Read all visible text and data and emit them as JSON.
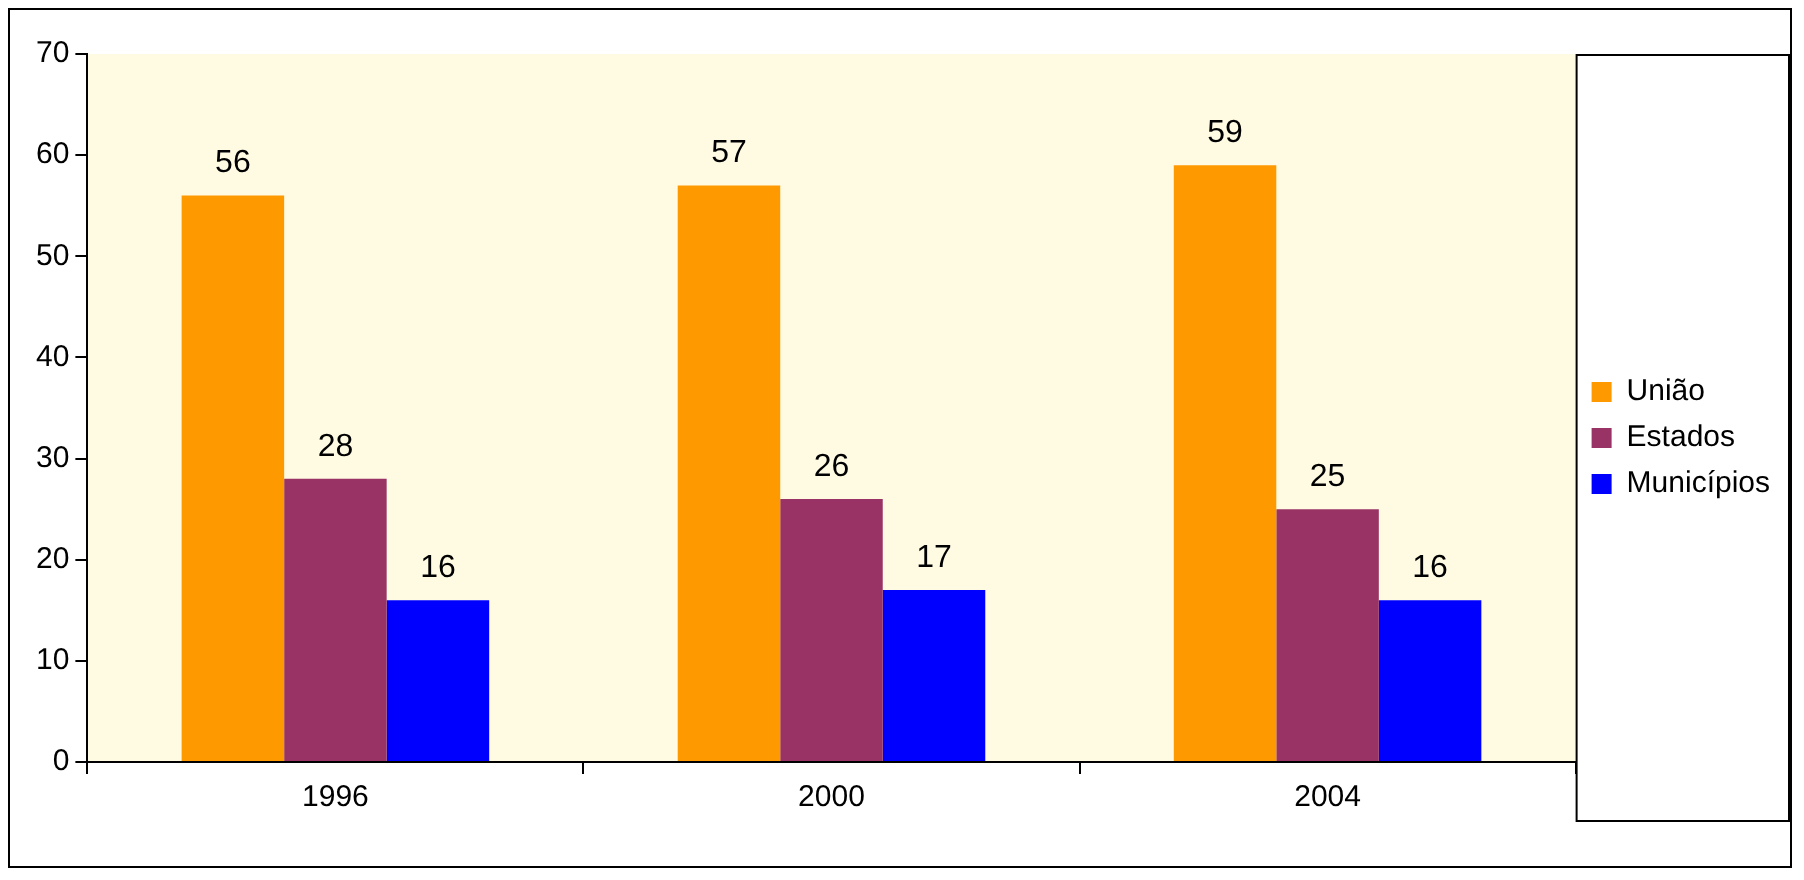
{
  "chart_data": {
    "type": "bar",
    "categories": [
      "1996",
      "2000",
      "2004"
    ],
    "series": [
      {
        "name": "União",
        "color": "#ff9900",
        "values": [
          56,
          57,
          59
        ]
      },
      {
        "name": "Estados",
        "color": "#993366",
        "values": [
          28,
          26,
          25
        ]
      },
      {
        "name": "Municípios",
        "color": "#0000ff",
        "values": [
          16,
          17,
          16
        ]
      }
    ],
    "ylim": [
      0,
      70
    ],
    "yticks": [
      0,
      10,
      20,
      30,
      40,
      50,
      60,
      70
    ],
    "grid": false,
    "legend": "right",
    "data_labels": true
  }
}
